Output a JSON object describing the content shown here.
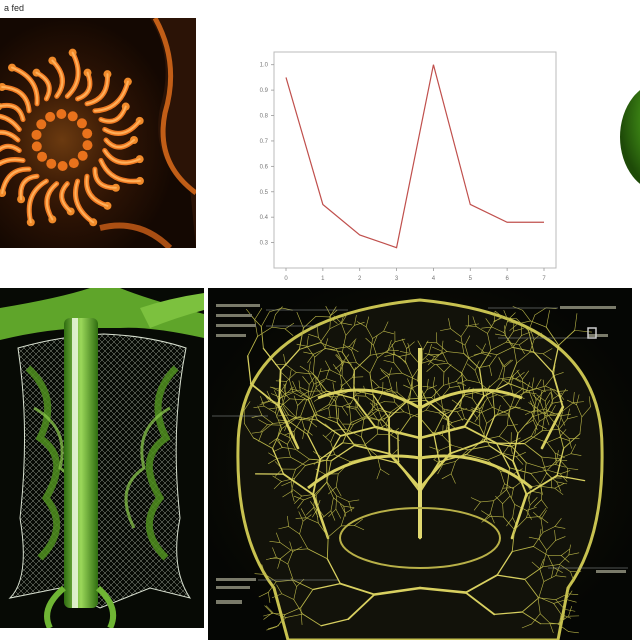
{
  "corner_label": "a fed",
  "chart_data": {
    "type": "line",
    "title": "",
    "xlabel": "",
    "ylabel": "",
    "x": [
      0,
      1,
      2,
      3,
      4,
      5,
      6,
      7
    ],
    "series": [
      {
        "values": [
          0.95,
          0.45,
          0.33,
          0.28,
          1.0,
          0.45,
          0.38,
          0.38
        ]
      }
    ],
    "ylim": [
      0.2,
      1.05
    ],
    "grid": false,
    "colors": {
      "line": "#c0504d"
    }
  },
  "icons": {
    "virus": "virus-illustration",
    "spine": "spinal-cord-3d-render",
    "brain": "vascular-brain-network-render",
    "orb": "green-sphere"
  },
  "colors": {
    "virus_orange": "#e8721c",
    "spine_green": "#6fb534",
    "vessel_yellow": "#c8c250"
  }
}
